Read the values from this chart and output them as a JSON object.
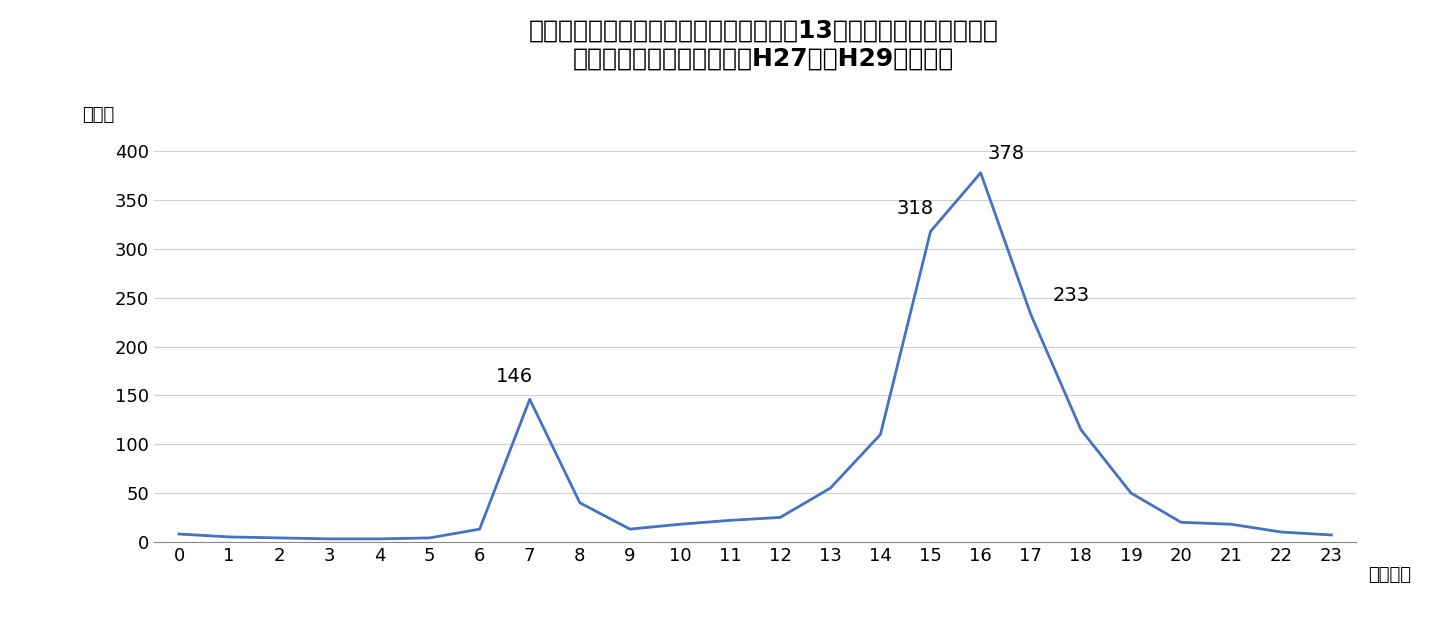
{
  "title_line1": "月曜日～金曜日の道路上における子供（13歳未満）が被害者となる",
  "title_line2": "身体犯の時間別発生状況（H27年～H29年累計）",
  "xlabel": "（時台）",
  "ylabel": "（件）",
  "x": [
    0,
    1,
    2,
    3,
    4,
    5,
    6,
    7,
    8,
    9,
    10,
    11,
    12,
    13,
    14,
    15,
    16,
    17,
    18,
    19,
    20,
    21,
    22,
    23
  ],
  "y": [
    8,
    5,
    4,
    3,
    3,
    4,
    13,
    146,
    40,
    13,
    18,
    22,
    25,
    55,
    110,
    318,
    378,
    233,
    115,
    50,
    20,
    18,
    10,
    7
  ],
  "labeled_points": {
    "7": 146,
    "15": 318,
    "16": 378,
    "17": 233
  },
  "line_color": "#4472C4",
  "line_width": 2.0,
  "background_color": "#ffffff",
  "grid_color": "#d0d0d0",
  "ylim": [
    0,
    420
  ],
  "yticks": [
    0,
    50,
    100,
    150,
    200,
    250,
    300,
    350,
    400
  ],
  "title_fontsize": 18,
  "axis_label_fontsize": 13,
  "tick_fontsize": 13,
  "annotation_fontsize": 14
}
